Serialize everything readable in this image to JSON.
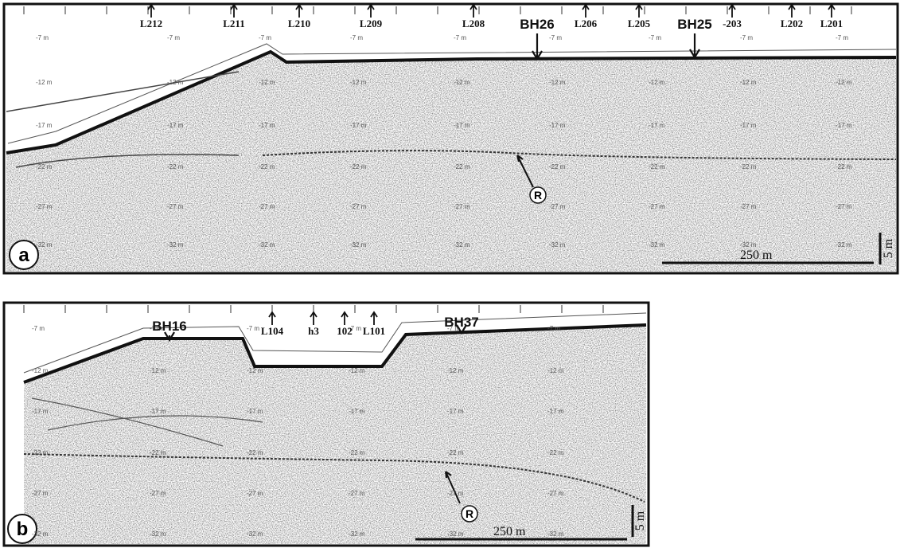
{
  "panel_a": {
    "label": "a",
    "boreholes": [
      "BH26",
      "BH25"
    ],
    "lines": [
      "L212",
      "L211",
      "L210",
      "L209",
      "L208",
      "L206",
      "L205",
      "-203",
      "L202",
      "L201"
    ],
    "reflector": "R",
    "scale_horizontal": "250 m",
    "scale_vertical": "5 m"
  },
  "panel_b": {
    "label": "b",
    "boreholes": [
      "BH16",
      "BH37"
    ],
    "lines": [
      "L104",
      "h3",
      "102",
      "L101"
    ],
    "reflector": "R",
    "scale_horizontal": "250 m",
    "scale_vertical": "5 m"
  },
  "depth_labels": [
    "-7 m",
    "-12 m",
    "-17 m",
    "-22 m",
    "-27 m",
    "-32 m"
  ]
}
